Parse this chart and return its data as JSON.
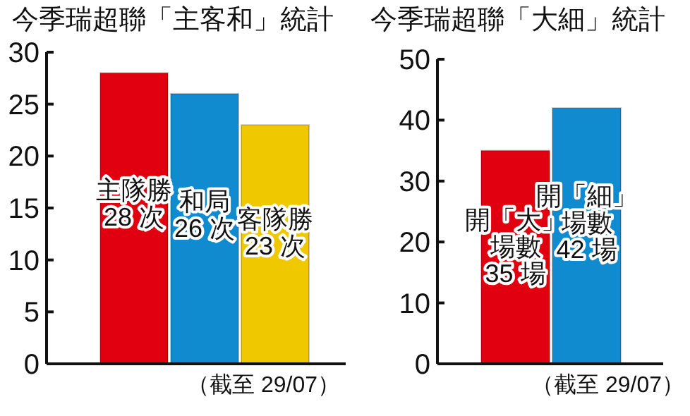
{
  "chart_data": [
    {
      "type": "bar",
      "title": "今季瑞超聯「主客和」統計",
      "categories": [
        null,
        null,
        null
      ],
      "values": [
        28,
        26,
        23
      ],
      "colors": [
        "#e0000f",
        "#118bd0",
        "#f0c800"
      ],
      "ylim": [
        0,
        30
      ],
      "yticks": [
        0,
        5,
        10,
        15,
        20,
        25,
        30
      ],
      "value_labels": [
        "主隊勝\n28 次",
        "和局\n26 次",
        "客隊勝\n23 次"
      ],
      "annotations": [
        "（截至 29/07）"
      ]
    },
    {
      "type": "bar",
      "title": "今季瑞超聯「大細」統計",
      "categories": [
        null,
        null
      ],
      "values": [
        35,
        42
      ],
      "colors": [
        "#e0000f",
        "#118bd0"
      ],
      "ylim": [
        0,
        50
      ],
      "yticks": [
        0,
        10,
        20,
        30,
        40,
        50
      ],
      "value_labels": [
        "開「大」場數\n35 場",
        "開「細」場數\n42 場"
      ],
      "annotations": [
        "（截至 29/07）"
      ]
    }
  ]
}
